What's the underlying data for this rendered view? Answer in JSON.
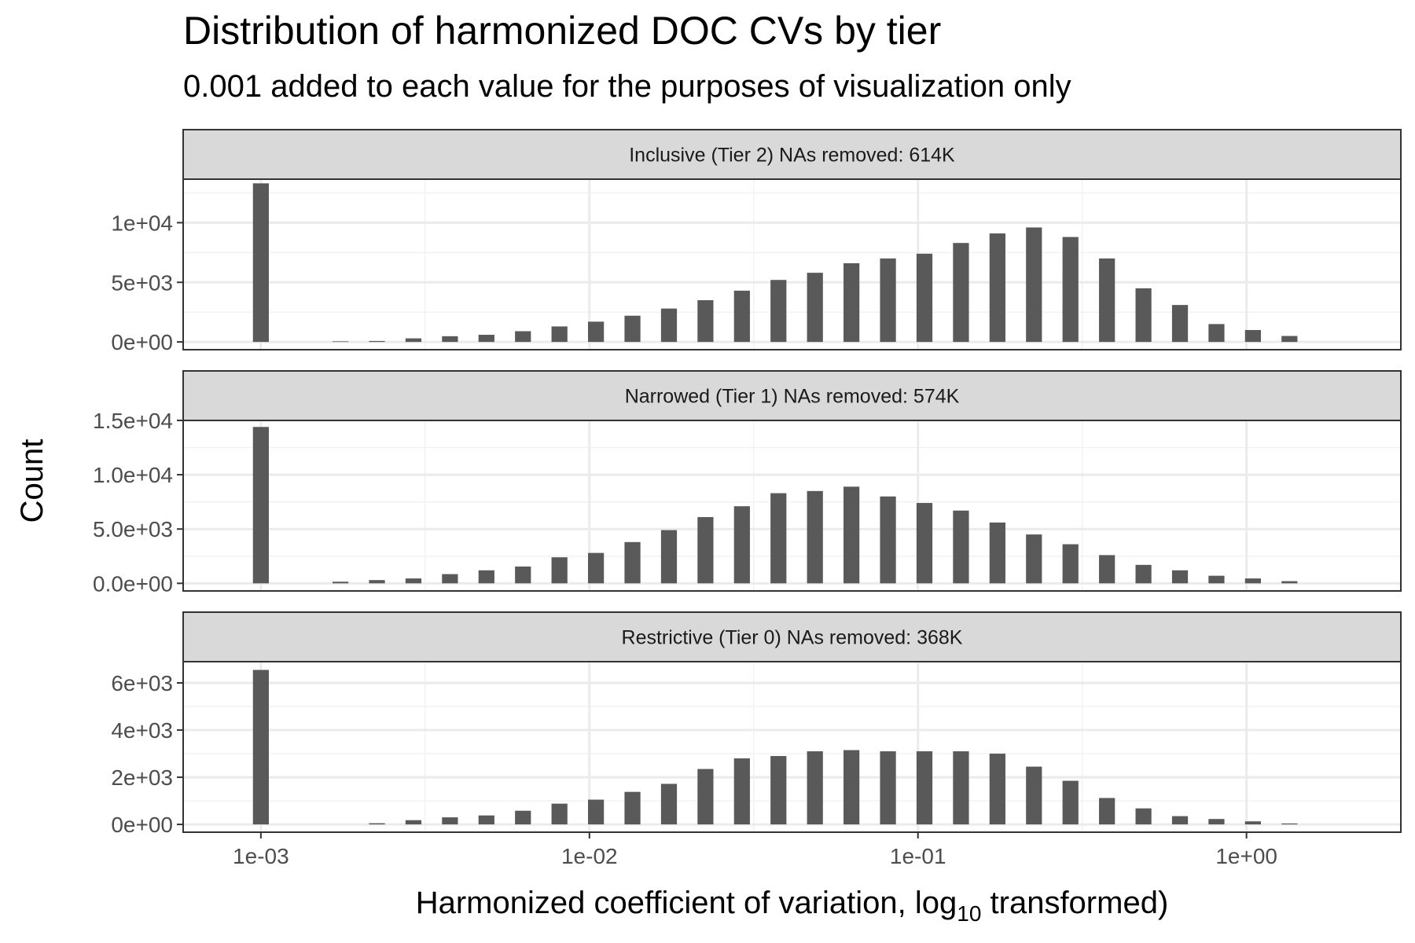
{
  "chart_data": {
    "type": "bar",
    "title": "Distribution of harmonized DOC CVs by tier",
    "subtitle": "0.001 added to each value for the purposes of visualization only",
    "xlabel_main": "Harmonized coefficient of variation, ",
    "xlabel_log": "log",
    "xlabel_sub": "10",
    "xlabel_end": " transformed)",
    "ylabel": "Count",
    "x_scale": "log10",
    "x_range": [
      0.00058,
      2.95
    ],
    "x_ticks": [
      {
        "value": 0.001,
        "label": "1e-03"
      },
      {
        "value": 0.01,
        "label": "1e-02"
      },
      {
        "value": 0.1,
        "label": "1e-01"
      },
      {
        "value": 1,
        "label": "1e+00"
      }
    ],
    "bin_log_width": 0.0484,
    "bin_centers_log10": [
      -3.0,
      -2.7578,
      -2.6467,
      -2.5356,
      -2.4245,
      -2.3134,
      -2.2023,
      -2.0912,
      -1.9801,
      -1.869,
      -1.7579,
      -1.6468,
      -1.5357,
      -1.4246,
      -1.3135,
      -1.2024,
      -1.0913,
      -0.9802,
      -0.8691,
      -0.758,
      -0.6469,
      -0.5358,
      -0.4247,
      -0.3136,
      -0.2025,
      -0.0914,
      0.0197,
      0.1308
    ],
    "grid": true,
    "legend": "none",
    "panels": [
      {
        "strip": "Inclusive (Tier 2) NAs removed: 614K",
        "y_range": [
          -650,
          13650
        ],
        "y_ticks": [
          {
            "value": 0,
            "label": "0e+00"
          },
          {
            "value": 5000,
            "label": "5e+03"
          },
          {
            "value": 10000,
            "label": "1e+04"
          }
        ],
        "values": [
          13300,
          50,
          80,
          300,
          480,
          600,
          900,
          1300,
          1700,
          2200,
          2800,
          3500,
          4300,
          5200,
          5800,
          6600,
          7000,
          7400,
          8300,
          9100,
          9600,
          8800,
          7000,
          4500,
          3100,
          1500,
          1000,
          500
        ]
      },
      {
        "strip": "Narrowed (Tier 1) NAs removed: 574K",
        "y_range": [
          -700,
          15000
        ],
        "y_ticks": [
          {
            "value": 0,
            "label": "0.0e+00"
          },
          {
            "value": 5000,
            "label": "5.0e+03"
          },
          {
            "value": 10000,
            "label": "1.0e+04"
          },
          {
            "value": 15000,
            "label": "1.5e+04"
          }
        ],
        "values": [
          14400,
          150,
          300,
          450,
          850,
          1200,
          1550,
          2400,
          2800,
          3800,
          4900,
          6100,
          7100,
          8300,
          8500,
          8900,
          8000,
          7400,
          6700,
          5600,
          4500,
          3600,
          2600,
          1700,
          1200,
          700,
          450,
          200
        ]
      },
      {
        "strip": "Restrictive (Tier 0) NAs removed: 368K",
        "y_range": [
          -330,
          6900
        ],
        "y_ticks": [
          {
            "value": 0,
            "label": "0e+00"
          },
          {
            "value": 2000,
            "label": "2e+03"
          },
          {
            "value": 4000,
            "label": "4e+03"
          },
          {
            "value": 6000,
            "label": "6e+03"
          }
        ],
        "values": [
          6550,
          0,
          50,
          180,
          300,
          380,
          580,
          880,
          1050,
          1380,
          1720,
          2350,
          2800,
          2900,
          3100,
          3150,
          3100,
          3100,
          3100,
          3000,
          2450,
          1850,
          1120,
          680,
          350,
          230,
          130,
          40
        ]
      }
    ]
  }
}
